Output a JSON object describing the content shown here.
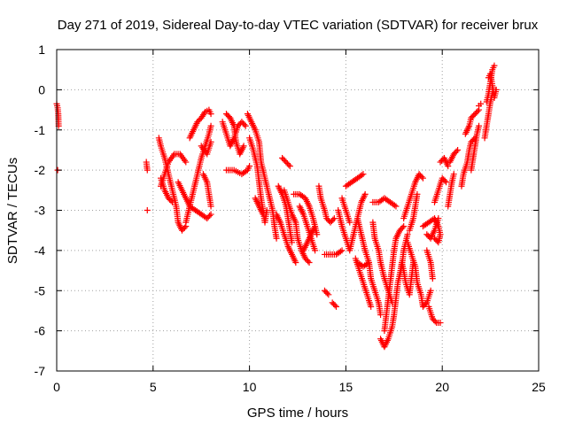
{
  "chart_data": {
    "type": "scatter",
    "title": "Day 271 of 2019, Sidereal Day-to-day VTEC variation (SDTVAR) for receiver brux",
    "xlabel": "GPS time / hours",
    "ylabel": "SDTVAR / TECUs",
    "xlim": [
      0,
      25
    ],
    "ylim": [
      -7,
      1
    ],
    "xticks": [
      "0",
      "5",
      "10",
      "15",
      "20",
      "25"
    ],
    "yticks": [
      "1",
      "0",
      "-1",
      "-2",
      "-3",
      "-4",
      "-5",
      "-6",
      "-7"
    ],
    "grid": true,
    "marker": "+",
    "color": "#ff0000",
    "segments": [
      [
        [
          0.0,
          -0.35
        ],
        [
          0.05,
          -0.45
        ],
        [
          0.08,
          -0.6
        ],
        [
          0.1,
          -0.9
        ]
      ],
      [
        [
          0.05,
          -2.0
        ]
      ],
      [
        [
          4.65,
          -1.8
        ],
        [
          4.7,
          -2.0
        ]
      ],
      [
        [
          4.7,
          -3.0
        ]
      ],
      [
        [
          5.3,
          -1.2
        ],
        [
          5.4,
          -1.4
        ],
        [
          5.6,
          -1.7
        ],
        [
          5.8,
          -2.1
        ],
        [
          6.0,
          -2.5
        ],
        [
          6.2,
          -2.9
        ],
        [
          6.3,
          -3.3
        ],
        [
          6.5,
          -3.5
        ],
        [
          6.7,
          -3.4
        ]
      ],
      [
        [
          5.4,
          -2.4
        ],
        [
          5.6,
          -2.1
        ],
        [
          5.8,
          -1.8
        ],
        [
          6.1,
          -1.6
        ],
        [
          6.4,
          -1.6
        ],
        [
          6.7,
          -1.8
        ]
      ],
      [
        [
          5.4,
          -2.2
        ],
        [
          5.6,
          -2.5
        ],
        [
          5.8,
          -2.7
        ],
        [
          6.0,
          -2.8
        ]
      ],
      [
        [
          6.3,
          -2.3
        ],
        [
          6.6,
          -2.6
        ],
        [
          6.9,
          -2.9
        ],
        [
          7.2,
          -3.0
        ],
        [
          7.5,
          -3.1
        ],
        [
          7.8,
          -3.2
        ],
        [
          8.0,
          -3.1
        ]
      ],
      [
        [
          6.7,
          -3.3
        ],
        [
          6.9,
          -2.9
        ],
        [
          7.1,
          -2.5
        ],
        [
          7.3,
          -2.1
        ],
        [
          7.5,
          -1.7
        ],
        [
          7.7,
          -1.4
        ],
        [
          7.9,
          -1.1
        ],
        [
          8.0,
          -0.9
        ]
      ],
      [
        [
          6.9,
          -1.2
        ],
        [
          7.1,
          -1.0
        ],
        [
          7.3,
          -0.8
        ],
        [
          7.5,
          -0.7
        ],
        [
          7.7,
          -0.55
        ],
        [
          7.9,
          -0.5
        ],
        [
          8.0,
          -0.6
        ]
      ],
      [
        [
          7.5,
          -1.4
        ],
        [
          7.8,
          -1.6
        ],
        [
          8.0,
          -1.3
        ]
      ],
      [
        [
          7.6,
          -2.1
        ],
        [
          7.8,
          -2.3
        ],
        [
          7.9,
          -2.6
        ],
        [
          8.0,
          -2.9
        ]
      ],
      [
        [
          8.6,
          -0.8
        ],
        [
          8.8,
          -1.1
        ],
        [
          9.0,
          -1.4
        ],
        [
          9.2,
          -1.2
        ],
        [
          9.4,
          -0.9
        ],
        [
          9.6,
          -0.8
        ],
        [
          9.8,
          -0.9
        ]
      ],
      [
        [
          8.8,
          -0.6
        ],
        [
          9.0,
          -0.7
        ],
        [
          9.2,
          -0.9
        ],
        [
          9.3,
          -1.3
        ],
        [
          9.5,
          -1.6
        ],
        [
          9.7,
          -1.4
        ]
      ],
      [
        [
          8.8,
          -2.0
        ],
        [
          9.2,
          -2.0
        ],
        [
          9.6,
          -2.1
        ],
        [
          9.9,
          -2.0
        ],
        [
          10.0,
          -1.9
        ]
      ],
      [
        [
          9.9,
          -0.6
        ],
        [
          10.1,
          -0.8
        ],
        [
          10.3,
          -1.0
        ],
        [
          10.5,
          -1.3
        ],
        [
          10.6,
          -1.8
        ],
        [
          10.8,
          -2.2
        ],
        [
          11.0,
          -2.6
        ],
        [
          11.2,
          -3.0
        ],
        [
          11.3,
          -3.4
        ],
        [
          11.4,
          -3.7
        ]
      ],
      [
        [
          10.0,
          -1.2
        ],
        [
          10.2,
          -1.5
        ],
        [
          10.4,
          -1.9
        ],
        [
          10.5,
          -2.3
        ],
        [
          10.6,
          -2.7
        ],
        [
          10.7,
          -3.0
        ],
        [
          10.8,
          -3.3
        ],
        [
          10.9,
          -3.0
        ]
      ],
      [
        [
          10.3,
          -2.7
        ],
        [
          10.5,
          -2.9
        ],
        [
          10.7,
          -3.1
        ]
      ],
      [
        [
          11.7,
          -1.7
        ],
        [
          11.9,
          -1.8
        ],
        [
          12.1,
          -1.9
        ]
      ],
      [
        [
          11.8,
          -2.5
        ],
        [
          12.0,
          -2.8
        ],
        [
          12.2,
          -3.1
        ],
        [
          12.4,
          -3.3
        ],
        [
          12.5,
          -3.7
        ],
        [
          12.7,
          -4.0
        ],
        [
          12.9,
          -4.2
        ],
        [
          13.1,
          -4.3
        ]
      ],
      [
        [
          11.5,
          -2.4
        ],
        [
          11.7,
          -2.6
        ],
        [
          11.9,
          -2.9
        ],
        [
          12.0,
          -3.2
        ],
        [
          12.1,
          -3.5
        ],
        [
          12.2,
          -3.8
        ]
      ],
      [
        [
          11.4,
          -3.1
        ],
        [
          11.6,
          -3.3
        ],
        [
          11.8,
          -3.6
        ],
        [
          12.0,
          -3.9
        ],
        [
          12.2,
          -4.1
        ],
        [
          12.4,
          -4.3
        ]
      ],
      [
        [
          12.3,
          -2.6
        ],
        [
          12.6,
          -2.6
        ],
        [
          12.9,
          -2.7
        ],
        [
          13.1,
          -2.9
        ],
        [
          13.3,
          -3.2
        ],
        [
          13.5,
          -3.6
        ]
      ],
      [
        [
          12.6,
          -2.9
        ],
        [
          12.8,
          -3.1
        ],
        [
          13.0,
          -3.4
        ],
        [
          13.2,
          -3.7
        ],
        [
          13.4,
          -4.0
        ]
      ],
      [
        [
          12.8,
          -4.0
        ],
        [
          13.0,
          -3.8
        ],
        [
          13.2,
          -3.6
        ],
        [
          13.4,
          -3.4
        ]
      ],
      [
        [
          13.6,
          -2.4
        ],
        [
          13.7,
          -2.7
        ],
        [
          13.9,
          -3.0
        ],
        [
          14.0,
          -3.2
        ],
        [
          14.2,
          -3.3
        ],
        [
          14.4,
          -3.2
        ]
      ],
      [
        [
          13.9,
          -4.1
        ],
        [
          14.2,
          -4.1
        ],
        [
          14.5,
          -4.1
        ],
        [
          14.8,
          -4.0
        ]
      ],
      [
        [
          13.9,
          -5.0
        ],
        [
          14.1,
          -5.1
        ]
      ],
      [
        [
          14.3,
          -5.3
        ],
        [
          14.5,
          -5.4
        ]
      ],
      [
        [
          14.6,
          -3.0
        ],
        [
          14.8,
          -3.4
        ],
        [
          15.0,
          -3.7
        ],
        [
          15.2,
          -4.0
        ],
        [
          15.4,
          -3.6
        ],
        [
          15.6,
          -3.2
        ],
        [
          15.8,
          -2.8
        ],
        [
          16.0,
          -2.6
        ]
      ],
      [
        [
          14.8,
          -2.7
        ],
        [
          15.0,
          -3.0
        ],
        [
          15.2,
          -3.3
        ]
      ],
      [
        [
          15.0,
          -2.4
        ],
        [
          15.3,
          -2.3
        ],
        [
          15.6,
          -2.2
        ],
        [
          15.9,
          -2.1
        ]
      ],
      [
        [
          15.6,
          -3.2
        ],
        [
          15.8,
          -3.6
        ],
        [
          16.0,
          -4.0
        ],
        [
          16.2,
          -4.3
        ],
        [
          16.3,
          -4.7
        ],
        [
          16.5,
          -5.0
        ],
        [
          16.7,
          -5.3
        ],
        [
          16.8,
          -5.6
        ]
      ],
      [
        [
          15.5,
          -4.2
        ],
        [
          15.7,
          -4.5
        ],
        [
          15.9,
          -4.8
        ],
        [
          16.1,
          -5.1
        ],
        [
          16.3,
          -5.4
        ]
      ],
      [
        [
          15.6,
          -4.3
        ],
        [
          15.9,
          -4.4
        ],
        [
          16.2,
          -4.3
        ]
      ],
      [
        [
          16.4,
          -2.8
        ],
        [
          16.7,
          -2.8
        ],
        [
          17.0,
          -2.7
        ],
        [
          17.3,
          -2.8
        ],
        [
          17.6,
          -2.9
        ]
      ],
      [
        [
          16.8,
          -6.2
        ],
        [
          17.0,
          -6.4
        ],
        [
          17.2,
          -6.2
        ],
        [
          17.4,
          -5.9
        ],
        [
          17.5,
          -5.6
        ],
        [
          17.6,
          -5.2
        ],
        [
          17.7,
          -4.8
        ],
        [
          17.9,
          -4.4
        ],
        [
          18.0,
          -4.0
        ],
        [
          18.2,
          -3.6
        ]
      ],
      [
        [
          17.0,
          -6.0
        ],
        [
          17.1,
          -5.6
        ],
        [
          17.2,
          -5.2
        ],
        [
          17.3,
          -4.8
        ],
        [
          17.4,
          -4.4
        ],
        [
          17.5,
          -4.0
        ],
        [
          17.6,
          -3.7
        ],
        [
          17.8,
          -3.5
        ],
        [
          18.0,
          -3.4
        ]
      ],
      [
        [
          16.4,
          -3.3
        ],
        [
          16.5,
          -3.7
        ],
        [
          16.7,
          -4.0
        ],
        [
          16.8,
          -4.3
        ],
        [
          17.0,
          -4.7
        ],
        [
          17.2,
          -5.0
        ],
        [
          17.4,
          -5.3
        ]
      ],
      [
        [
          17.8,
          -4.6
        ],
        [
          17.9,
          -4.3
        ],
        [
          18.0,
          -4.5
        ],
        [
          18.1,
          -4.8
        ],
        [
          18.3,
          -5.1
        ],
        [
          18.4,
          -4.7
        ],
        [
          18.5,
          -4.3
        ]
      ],
      [
        [
          18.2,
          -3.8
        ],
        [
          18.4,
          -4.1
        ],
        [
          18.6,
          -4.4
        ],
        [
          18.7,
          -4.8
        ],
        [
          18.9,
          -5.1
        ],
        [
          19.0,
          -5.4
        ],
        [
          19.2,
          -5.3
        ],
        [
          19.4,
          -5.0
        ]
      ],
      [
        [
          18.0,
          -3.2
        ],
        [
          18.2,
          -2.9
        ],
        [
          18.4,
          -2.6
        ],
        [
          18.6,
          -2.3
        ],
        [
          18.8,
          -2.1
        ],
        [
          19.0,
          -2.2
        ]
      ],
      [
        [
          18.3,
          -3.5
        ],
        [
          18.5,
          -3.2
        ],
        [
          18.6,
          -2.9
        ],
        [
          18.7,
          -2.6
        ]
      ],
      [
        [
          19.0,
          -3.4
        ],
        [
          19.3,
          -3.3
        ],
        [
          19.6,
          -3.2
        ],
        [
          19.8,
          -3.4
        ],
        [
          19.9,
          -3.6
        ],
        [
          19.8,
          -3.8
        ],
        [
          19.6,
          -3.7
        ]
      ],
      [
        [
          19.2,
          -3.6
        ],
        [
          19.4,
          -3.7
        ],
        [
          19.6,
          -3.5
        ],
        [
          19.8,
          -3.2
        ]
      ],
      [
        [
          19.3,
          -5.4
        ],
        [
          19.5,
          -5.7
        ],
        [
          19.7,
          -5.8
        ],
        [
          19.9,
          -5.8
        ]
      ],
      [
        [
          19.2,
          -4.0
        ],
        [
          19.4,
          -4.3
        ],
        [
          19.5,
          -4.7
        ]
      ],
      [
        [
          19.6,
          -2.8
        ],
        [
          19.8,
          -2.5
        ],
        [
          20.0,
          -2.2
        ],
        [
          20.2,
          -2.3
        ]
      ],
      [
        [
          19.9,
          -1.8
        ],
        [
          20.1,
          -1.7
        ],
        [
          20.3,
          -1.9
        ]
      ],
      [
        [
          20.3,
          -2.9
        ],
        [
          20.4,
          -2.6
        ],
        [
          20.5,
          -2.3
        ],
        [
          20.6,
          -2.1
        ]
      ],
      [
        [
          20.4,
          -1.8
        ],
        [
          20.6,
          -1.6
        ],
        [
          20.8,
          -1.5
        ]
      ],
      [
        [
          21.0,
          -2.4
        ],
        [
          21.1,
          -2.1
        ],
        [
          21.3,
          -1.8
        ],
        [
          21.4,
          -1.5
        ],
        [
          21.5,
          -1.3
        ],
        [
          21.7,
          -1.2
        ]
      ],
      [
        [
          21.2,
          -1.1
        ],
        [
          21.4,
          -0.9
        ],
        [
          21.5,
          -0.7
        ],
        [
          21.7,
          -0.6
        ],
        [
          21.9,
          -0.5
        ]
      ],
      [
        [
          21.5,
          -2.0
        ],
        [
          21.6,
          -1.7
        ],
        [
          21.7,
          -1.4
        ],
        [
          21.8,
          -1.1
        ],
        [
          21.9,
          -0.9
        ]
      ],
      [
        [
          21.9,
          -0.4
        ],
        [
          22.0,
          -0.35
        ]
      ],
      [
        [
          22.3,
          -0.3
        ],
        [
          22.4,
          -0.1
        ],
        [
          22.5,
          0.2
        ],
        [
          22.6,
          0.5
        ],
        [
          22.7,
          0.6
        ]
      ],
      [
        [
          22.2,
          -1.2
        ],
        [
          22.3,
          -0.9
        ],
        [
          22.4,
          -0.6
        ],
        [
          22.5,
          -0.3
        ],
        [
          22.6,
          -0.1
        ]
      ],
      [
        [
          22.4,
          0.3
        ],
        [
          22.5,
          0.4
        ],
        [
          22.6,
          0.1
        ],
        [
          22.7,
          -0.2
        ],
        [
          22.8,
          0.0
        ]
      ]
    ]
  }
}
